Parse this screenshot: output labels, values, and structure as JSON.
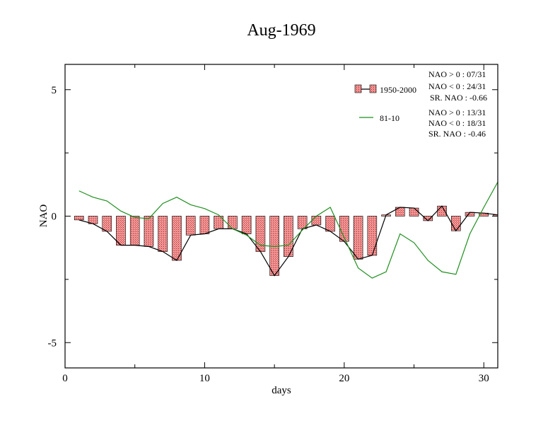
{
  "chart_data": {
    "type": "bar",
    "title": "Aug-1969",
    "xlabel": "days",
    "ylabel": "NAO",
    "xlim": [
      0,
      31
    ],
    "ylim": [
      -6,
      6
    ],
    "x_ticks": [
      0,
      10,
      20,
      30
    ],
    "y_ticks": [
      5,
      0,
      -5
    ],
    "x_tick_labels": [
      "0",
      "10",
      "20",
      "30"
    ],
    "y_tick_labels": [
      "5",
      "0",
      "-5"
    ],
    "grid": false,
    "legend_position": "top-right",
    "x": [
      1,
      2,
      3,
      4,
      5,
      6,
      7,
      8,
      9,
      10,
      11,
      12,
      13,
      14,
      15,
      16,
      17,
      18,
      19,
      20,
      21,
      22,
      23,
      24,
      25,
      26,
      27,
      28,
      29,
      30,
      31
    ],
    "series": [
      {
        "name": "1950-2000",
        "style": "bar+line",
        "fill_color": "#f08080",
        "line_color": "#000000",
        "values": [
          -0.15,
          -0.3,
          -0.6,
          -1.15,
          -1.15,
          -1.2,
          -1.4,
          -1.75,
          -0.75,
          -0.7,
          -0.5,
          -0.5,
          -0.7,
          -1.4,
          -2.35,
          -1.6,
          -0.5,
          -0.35,
          -0.6,
          -1.0,
          -1.7,
          -1.55,
          0.05,
          0.35,
          0.32,
          -0.18,
          0.4,
          -0.58,
          0.15,
          0.12,
          0.05
        ]
      },
      {
        "name": "81-10",
        "style": "line",
        "line_color": "#1f8f1f",
        "values": [
          1.0,
          0.75,
          0.6,
          0.2,
          -0.05,
          -0.1,
          0.5,
          0.75,
          0.45,
          0.3,
          0.05,
          -0.5,
          -0.75,
          -1.15,
          -1.2,
          -1.15,
          -0.55,
          0.0,
          0.35,
          -0.85,
          -2.05,
          -2.45,
          -2.2,
          -0.7,
          -1.05,
          -1.75,
          -2.2,
          -2.3,
          -0.7,
          0.35,
          1.35
        ]
      }
    ],
    "annotations": {
      "group1": [
        "NAO > 0 : 07/31",
        "NAO < 0 : 24/31",
        "SR. NAO : -0.66"
      ],
      "group2": [
        "NAO > 0 : 13/31",
        "NAO < 0 : 18/31",
        "SR. NAO : -0.46"
      ]
    }
  }
}
